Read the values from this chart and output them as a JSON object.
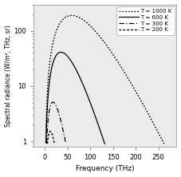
{
  "title": "",
  "xlabel": "Frequency (THz)",
  "ylabel": "Spectral radiance (W/m², THz, sr)",
  "xlim": [
    -25,
    290
  ],
  "ylim_log": [
    0.8,
    300
  ],
  "temperatures": [
    1000,
    600,
    300,
    200
  ],
  "legend_labels": [
    "T = 1000 K",
    "T = 600 K",
    "T = 300 K",
    "T = 200 K"
  ],
  "xticks": [
    0,
    50,
    100,
    150,
    200,
    250
  ],
  "freq_min": 0.1,
  "freq_max": 290,
  "clip_min": 0.9
}
